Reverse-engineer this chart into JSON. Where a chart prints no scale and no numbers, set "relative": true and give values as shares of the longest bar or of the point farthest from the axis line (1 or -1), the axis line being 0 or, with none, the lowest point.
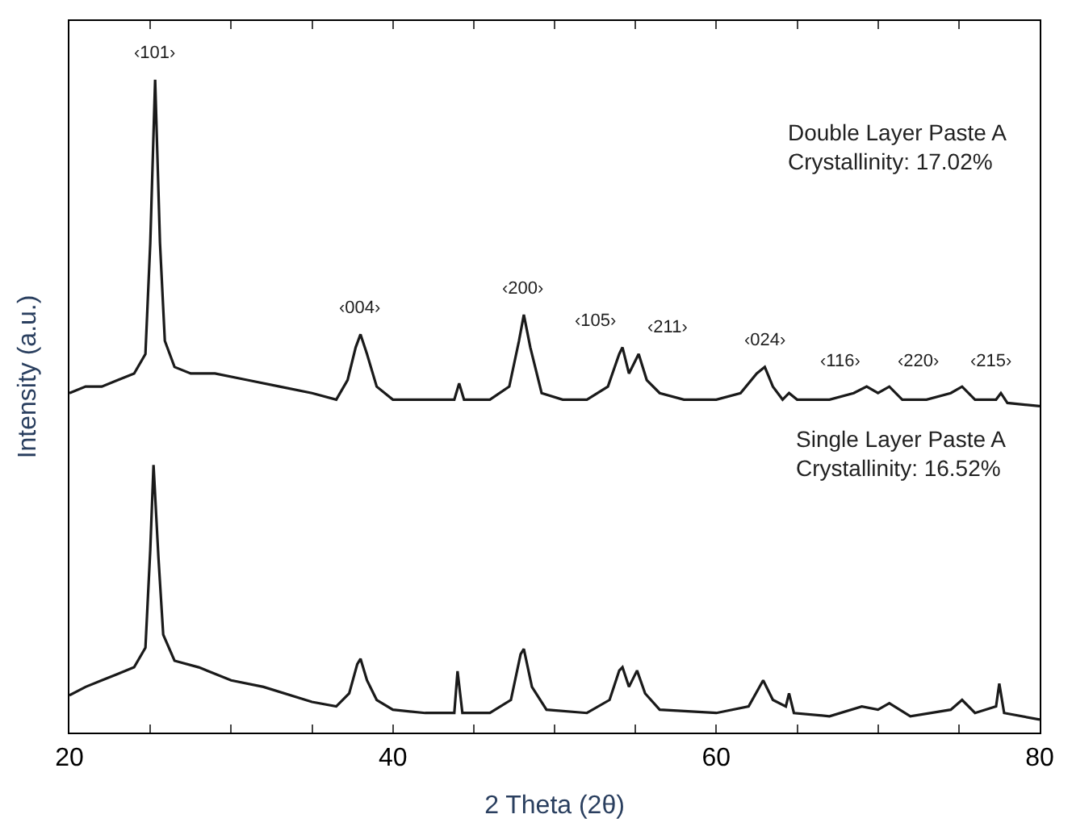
{
  "chart_data": {
    "type": "line",
    "relative": true,
    "xlabel": "2 Theta (2θ)",
    "ylabel": "Intensity (a.u.)",
    "xlim": [
      20,
      80
    ],
    "xticks": [
      20,
      {
        "value": 25,
        "label": null
      },
      {
        "value": 30,
        "label": null
      },
      {
        "value": 35,
        "label": null
      },
      40,
      {
        "value": 45,
        "label": null
      },
      {
        "value": 50,
        "label": null
      },
      {
        "value": 55,
        "label": null
      },
      60,
      {
        "value": 65,
        "label": null
      },
      {
        "value": 70,
        "label": null
      },
      {
        "value": 75,
        "label": null
      },
      80
    ],
    "marker": "none",
    "line_style": "solid",
    "series": [
      {
        "color": "#1a1a1a",
        "x": [
          20,
          21,
          22,
          23,
          24,
          24.7,
          25.0,
          25.3,
          25.6,
          25.9,
          26.5,
          27.5,
          29,
          31,
          33,
          35,
          36.5,
          37.2,
          37.7,
          38.0,
          38.4,
          39,
          40,
          42,
          43.8,
          44.1,
          44.4,
          46,
          47.2,
          47.8,
          48.1,
          48.5,
          49.2,
          50.5,
          52,
          53.3,
          54.0,
          54.2,
          54.6,
          55.2,
          55.7,
          56.5,
          58,
          60,
          61.5,
          62.5,
          63.0,
          63.5,
          64.1,
          64.5,
          65,
          67,
          68.5,
          69.3,
          70,
          70.7,
          71.5,
          73,
          74.5,
          75.2,
          76,
          77.3,
          77.6,
          78,
          80
        ],
        "values": [
          0.52,
          0.53,
          0.53,
          0.54,
          0.55,
          0.58,
          0.75,
          1.0,
          0.75,
          0.6,
          0.56,
          0.55,
          0.55,
          0.54,
          0.53,
          0.52,
          0.51,
          0.54,
          0.59,
          0.61,
          0.58,
          0.53,
          0.51,
          0.51,
          0.51,
          0.535,
          0.51,
          0.51,
          0.53,
          0.6,
          0.64,
          0.59,
          0.52,
          0.51,
          0.51,
          0.53,
          0.58,
          0.59,
          0.55,
          0.58,
          0.54,
          0.52,
          0.51,
          0.51,
          0.52,
          0.55,
          0.56,
          0.53,
          0.51,
          0.52,
          0.51,
          0.51,
          0.52,
          0.53,
          0.52,
          0.53,
          0.51,
          0.51,
          0.52,
          0.53,
          0.51,
          0.51,
          0.52,
          0.505,
          0.5
        ]
      },
      {
        "color": "#1a1a1a",
        "x": [
          20,
          21,
          22,
          23,
          24,
          24.7,
          25.0,
          25.2,
          25.5,
          25.8,
          26.5,
          28,
          30,
          32,
          35,
          36.5,
          37.3,
          37.8,
          38.0,
          38.4,
          39,
          40,
          42,
          43.8,
          44.0,
          44.3,
          46,
          47.3,
          47.9,
          48.1,
          48.6,
          49.5,
          52,
          53.4,
          54.0,
          54.2,
          54.6,
          55.1,
          55.6,
          56.5,
          60,
          62,
          62.9,
          63.5,
          64.3,
          64.5,
          64.8,
          67,
          69,
          70,
          70.7,
          72,
          74.5,
          75.2,
          76,
          77.3,
          77.5,
          77.8,
          80
        ],
        "values": [
          0.057,
          0.07,
          0.08,
          0.09,
          0.1,
          0.13,
          0.28,
          0.41,
          0.27,
          0.15,
          0.11,
          0.1,
          0.08,
          0.07,
          0.047,
          0.04,
          0.06,
          0.105,
          0.113,
          0.08,
          0.05,
          0.035,
          0.03,
          0.03,
          0.094,
          0.03,
          0.03,
          0.05,
          0.12,
          0.128,
          0.07,
          0.035,
          0.03,
          0.05,
          0.095,
          0.1,
          0.07,
          0.095,
          0.06,
          0.035,
          0.03,
          0.04,
          0.08,
          0.05,
          0.04,
          0.06,
          0.03,
          0.025,
          0.04,
          0.035,
          0.045,
          0.025,
          0.035,
          0.05,
          0.03,
          0.04,
          0.075,
          0.03,
          0.02
        ]
      }
    ],
    "annotations": [
      "Double Layer Paste A\nCrystallinity: 17.02%",
      "Single Layer Paste A\nCrystallinity: 16.52%",
      {
        "text": "‹101›",
        "x": 25.3,
        "y": 1.0
      },
      {
        "text": "‹004›",
        "x": 38.0,
        "y": 0.61
      },
      {
        "text": "‹200›",
        "x": 48.1,
        "y": 0.64
      },
      {
        "text": "‹105›",
        "x": 54.2,
        "y": 0.59
      },
      {
        "text": "‹211›",
        "x": 55.2,
        "y": 0.58
      },
      {
        "text": "‹024›",
        "x": 63.0,
        "y": 0.56
      },
      {
        "text": "‹116›",
        "x": 69.3,
        "y": 0.53
      },
      {
        "text": "‹220›",
        "x": 70.7,
        "y": 0.53
      },
      {
        "text": "‹215›",
        "x": 75.2,
        "y": 0.53
      }
    ]
  }
}
